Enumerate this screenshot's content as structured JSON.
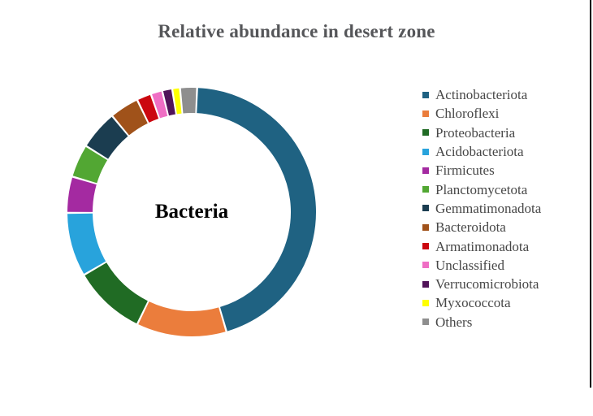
{
  "page": {
    "background": "#ffffff",
    "right_border_color": "#000000"
  },
  "chart_data": {
    "type": "pie",
    "subtype": "donut",
    "title": "Relative abundance in desert zone",
    "title_color": "#555659",
    "center_label": "Bacteria",
    "legend_position": "right",
    "start_angle_deg": 2.5,
    "values_unit": "percent (relative abundance, estimated from arc angles)",
    "series": [
      {
        "name": "Actinobacteriota",
        "value": 44.8,
        "color": "#1F6282"
      },
      {
        "name": "Chloroflexi",
        "value": 11.7,
        "color": "#EB7D3C"
      },
      {
        "name": "Proteobacteria",
        "value": 9.4,
        "color": "#206B24"
      },
      {
        "name": "Acidobacteriota",
        "value": 8.3,
        "color": "#28A3DC"
      },
      {
        "name": "Firmicutes",
        "value": 4.7,
        "color": "#A42AA1"
      },
      {
        "name": "Planctomycetota",
        "value": 4.3,
        "color": "#52A733"
      },
      {
        "name": "Gemmatimonadota",
        "value": 5.1,
        "color": "#1B3D50"
      },
      {
        "name": "Bacteroidota",
        "value": 3.8,
        "color": "#A0521A"
      },
      {
        "name": "Armatimonadota",
        "value": 1.9,
        "color": "#CB070F"
      },
      {
        "name": "Unclassified",
        "value": 1.5,
        "color": "#EF6EC4"
      },
      {
        "name": "Verrucomicrobiota",
        "value": 1.3,
        "color": "#511459"
      },
      {
        "name": "Myxococcota",
        "value": 1.0,
        "color": "#FFFF00"
      },
      {
        "name": "Others",
        "value": 2.2,
        "color": "#8E8E8E"
      }
    ]
  }
}
